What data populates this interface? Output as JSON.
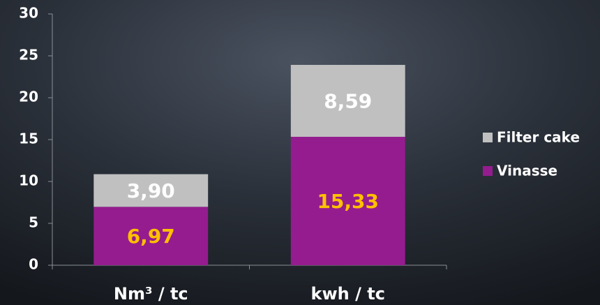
{
  "chart_data": {
    "type": "stacked_bar",
    "categories": [
      "Nm³ / tc",
      "kwh / tc"
    ],
    "series": [
      {
        "name": "Vinasse",
        "color": "#951c8f",
        "label_color": "#ffc000",
        "values": [
          6.97,
          15.33
        ],
        "value_labels": [
          "6,97",
          "15,33"
        ]
      },
      {
        "name": "Filter cake",
        "color": "#c0c0c0",
        "label_color": "#ffffff",
        "values": [
          3.9,
          8.59
        ],
        "value_labels": [
          "3,90",
          "8,59"
        ]
      }
    ],
    "ylim": [
      0,
      30
    ],
    "yticks": [
      0,
      5,
      10,
      15,
      20,
      25,
      30
    ],
    "grid": false,
    "legend": "right"
  }
}
